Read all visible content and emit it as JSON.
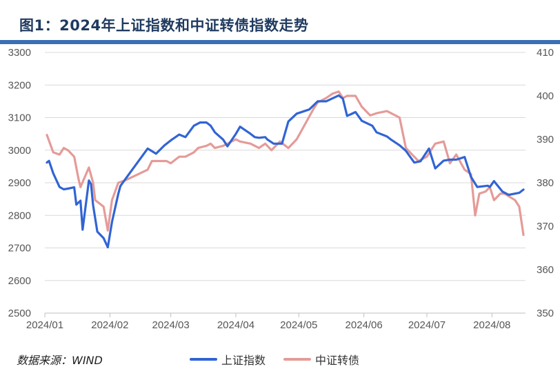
{
  "title": "图1：2024年上证指数和中证转债指数走势",
  "source": "数据来源：WIND",
  "colors": {
    "title": "#1F3A5F",
    "rule": "#3B6FB6",
    "sse": "#3164D4",
    "cb": "#E49B98",
    "grid": "#D9D9D9"
  },
  "chart_data": {
    "type": "line",
    "title": "图1：2024年上证指数和中证转债指数走势",
    "xlabel": "",
    "ylabel": "",
    "x_ticks": [
      "2024/01",
      "2024/02",
      "2024/03",
      "2024/04",
      "2024/05",
      "2024/06",
      "2024/07",
      "2024/08"
    ],
    "y_left": {
      "min": 2500,
      "max": 3300,
      "ticks": [
        2500,
        2600,
        2700,
        2800,
        2900,
        3000,
        3100,
        3200,
        3300
      ]
    },
    "y_right": {
      "min": 350,
      "max": 410,
      "ticks": [
        350,
        360,
        370,
        380,
        390,
        400,
        410
      ]
    },
    "grid": true,
    "legend_position": "bottom",
    "series": [
      {
        "name": "上证指数",
        "axis": "left",
        "color": "#3164D4",
        "x": [
          "2024-01-02",
          "2024-01-03",
          "2024-01-05",
          "2024-01-08",
          "2024-01-10",
          "2024-01-12",
          "2024-01-15",
          "2024-01-16",
          "2024-01-18",
          "2024-01-19",
          "2024-01-22",
          "2024-01-23",
          "2024-01-24",
          "2024-01-26",
          "2024-01-29",
          "2024-01-31",
          "2024-02-02",
          "2024-02-05",
          "2024-02-06",
          "2024-02-08",
          "2024-02-19",
          "2024-02-23",
          "2024-02-27",
          "2024-03-01",
          "2024-03-05",
          "2024-03-08",
          "2024-03-12",
          "2024-03-15",
          "2024-03-18",
          "2024-03-20",
          "2024-03-22",
          "2024-03-26",
          "2024-03-28",
          "2024-04-01",
          "2024-04-03",
          "2024-04-08",
          "2024-04-10",
          "2024-04-12",
          "2024-04-15",
          "2024-04-16",
          "2024-04-19",
          "2024-04-23",
          "2024-04-26",
          "2024-04-30",
          "2024-05-06",
          "2024-05-10",
          "2024-05-14",
          "2024-05-20",
          "2024-05-22",
          "2024-05-24",
          "2024-05-28",
          "2024-05-31",
          "2024-06-05",
          "2024-06-07",
          "2024-06-12",
          "2024-06-14",
          "2024-06-18",
          "2024-06-21",
          "2024-06-25",
          "2024-06-28",
          "2024-07-02",
          "2024-07-05",
          "2024-07-09",
          "2024-07-12",
          "2024-07-15",
          "2024-07-19",
          "2024-07-22",
          "2024-07-25",
          "2024-07-30",
          "2024-07-31",
          "2024-08-02",
          "2024-08-06",
          "2024-08-09",
          "2024-08-14",
          "2024-08-16"
        ],
        "values": [
          2962,
          2967,
          2929,
          2887,
          2880,
          2882,
          2886,
          2833,
          2845,
          2756,
          2907,
          2896,
          2831,
          2750,
          2730,
          2702,
          2780,
          2866,
          2890,
          2908,
          3005,
          2989,
          3015,
          3030,
          3048,
          3040,
          3075,
          3085,
          3085,
          3075,
          3055,
          3032,
          3012,
          3050,
          3072,
          3050,
          3040,
          3038,
          3040,
          3033,
          3020,
          3020,
          3088,
          3112,
          3125,
          3150,
          3150,
          3168,
          3158,
          3105,
          3117,
          3090,
          3075,
          3055,
          3042,
          3032,
          3015,
          2998,
          2962,
          2966,
          3005,
          2944,
          2968,
          2971,
          2971,
          2979,
          2918,
          2887,
          2891,
          2887,
          2905,
          2873,
          2863,
          2869,
          2879
        ]
      },
      {
        "name": "中证转债",
        "axis": "right",
        "color": "#E49B98",
        "x": [
          "2024-01-02",
          "2024-01-05",
          "2024-01-08",
          "2024-01-10",
          "2024-01-12",
          "2024-01-15",
          "2024-01-17",
          "2024-01-18",
          "2024-01-22",
          "2024-01-24",
          "2024-01-25",
          "2024-01-29",
          "2024-01-31",
          "2024-02-02",
          "2024-02-05",
          "2024-02-08",
          "2024-02-19",
          "2024-02-21",
          "2024-02-23",
          "2024-02-28",
          "2024-03-01",
          "2024-03-05",
          "2024-03-08",
          "2024-03-12",
          "2024-03-14",
          "2024-03-18",
          "2024-03-20",
          "2024-03-22",
          "2024-03-26",
          "2024-04-01",
          "2024-04-03",
          "2024-04-08",
          "2024-04-10",
          "2024-04-12",
          "2024-04-15",
          "2024-04-18",
          "2024-04-22",
          "2024-04-26",
          "2024-04-30",
          "2024-05-08",
          "2024-05-10",
          "2024-05-14",
          "2024-05-17",
          "2024-05-20",
          "2024-05-22",
          "2024-05-24",
          "2024-05-28",
          "2024-05-31",
          "2024-06-04",
          "2024-06-07",
          "2024-06-12",
          "2024-06-14",
          "2024-06-18",
          "2024-06-21",
          "2024-06-24",
          "2024-06-27",
          "2024-07-01",
          "2024-07-03",
          "2024-07-05",
          "2024-07-09",
          "2024-07-12",
          "2024-07-15",
          "2024-07-19",
          "2024-07-22",
          "2024-07-24",
          "2024-07-26",
          "2024-07-29",
          "2024-07-31",
          "2024-08-02",
          "2024-08-05",
          "2024-08-07",
          "2024-08-12",
          "2024-08-14",
          "2024-08-16"
        ],
        "values": [
          391.0,
          387.0,
          386.5,
          388.0,
          387.5,
          386.0,
          381.0,
          379.0,
          383.5,
          380.0,
          376.0,
          374.5,
          369.0,
          376.0,
          380.0,
          380.5,
          383.0,
          385.0,
          385.0,
          385.0,
          384.5,
          386.0,
          386.0,
          387.0,
          388.0,
          388.5,
          389.0,
          388.0,
          388.5,
          390.0,
          389.5,
          389.0,
          388.5,
          388.0,
          389.0,
          387.5,
          389.5,
          388.0,
          390.0,
          397.0,
          398.5,
          399.5,
          400.5,
          401.0,
          399.5,
          400.0,
          400.0,
          397.5,
          395.5,
          396.0,
          396.5,
          396.0,
          395.0,
          388.0,
          386.5,
          385.0,
          386.0,
          387.5,
          389.0,
          389.5,
          384.5,
          386.5,
          383.0,
          382.0,
          372.5,
          377.5,
          378.0,
          379.0,
          376.0,
          377.5,
          377.5,
          376.0,
          374.5,
          368.0
        ]
      }
    ]
  }
}
